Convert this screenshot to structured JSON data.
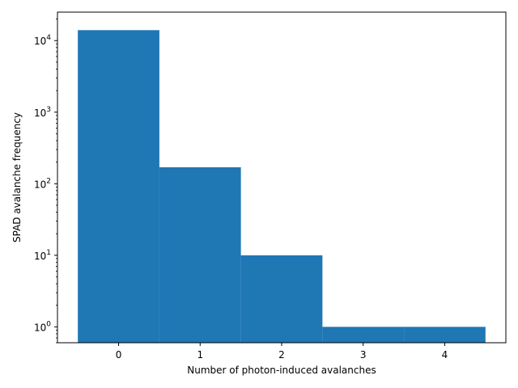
{
  "chart_data": {
    "type": "bar",
    "title": "",
    "xlabel": "Number of photon-induced avalanches",
    "ylabel": "SPAD avalanche frequency",
    "categories": [
      "0",
      "1",
      "2",
      "3",
      "4"
    ],
    "bins": [
      {
        "left": -0.5,
        "right": 0.5,
        "value": 14000
      },
      {
        "left": 0.5,
        "right": 1.5,
        "value": 170
      },
      {
        "left": 1.5,
        "right": 2.5,
        "value": 10
      },
      {
        "left": 2.5,
        "right": 3.5,
        "value": 1
      },
      {
        "left": 3.5,
        "right": 4.5,
        "value": 1
      }
    ],
    "xlim": [
      -0.75,
      4.75
    ],
    "ylim": [
      0.6,
      25000
    ],
    "yscale": "log",
    "xticks": [
      0,
      1,
      2,
      3,
      4
    ],
    "yticks": [
      {
        "value": 1,
        "base": "10",
        "exp": "0"
      },
      {
        "value": 10,
        "base": "10",
        "exp": "1"
      },
      {
        "value": 100,
        "base": "10",
        "exp": "2"
      },
      {
        "value": 1000,
        "base": "10",
        "exp": "3"
      },
      {
        "value": 10000,
        "base": "10",
        "exp": "4"
      }
    ],
    "grid": false,
    "legend": "none",
    "bar_color": "#1f77b4"
  }
}
